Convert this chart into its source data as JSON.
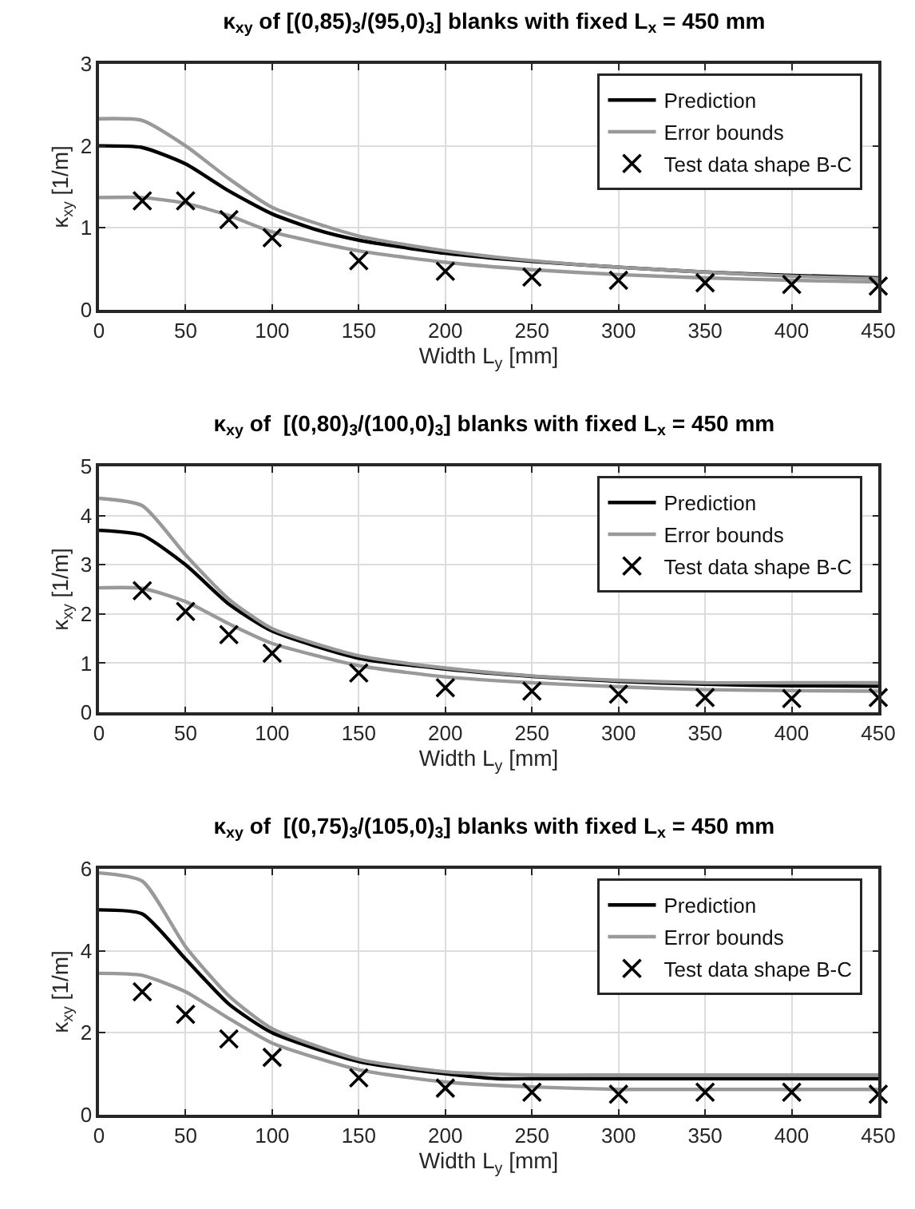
{
  "chart_data": [
    {
      "type": "line",
      "title": "κ$_{xy}$ of [(0,85)$_{3}$/(95,0)$_{3}$] blanks with fixed L$_{x}$ = 450 mm",
      "xlabel": "Width L$_{y}$ [mm]",
      "ylabel": "κ$_{xy}$ [1/m]",
      "xlim": [
        0,
        450
      ],
      "xticks": [
        0,
        50,
        100,
        150,
        200,
        250,
        300,
        350,
        400,
        450
      ],
      "ylim": [
        0,
        3
      ],
      "yticks": [
        0,
        1,
        2,
        3
      ],
      "grid": true,
      "legend": "top right",
      "series": [
        {
          "name": "Prediction",
          "color": "#000000",
          "x": [
            0,
            25,
            50,
            75,
            100,
            125,
            150,
            200,
            250,
            300,
            350,
            400,
            450
          ],
          "values": [
            2.0,
            1.98,
            1.78,
            1.45,
            1.17,
            0.98,
            0.85,
            0.69,
            0.59,
            0.52,
            0.46,
            0.42,
            0.39
          ]
        },
        {
          "name": "Error bounds",
          "color": "#999999",
          "x": [
            0,
            25,
            50,
            75,
            100,
            150,
            200,
            250,
            300,
            350,
            400,
            450
          ],
          "values": [
            2.33,
            2.31,
            2.0,
            1.6,
            1.25,
            0.9,
            0.72,
            0.6,
            0.52,
            0.46,
            0.41,
            0.38
          ]
        },
        {
          "color": "#999999",
          "x": [
            0,
            25,
            50,
            75,
            100,
            150,
            200,
            250,
            300,
            350,
            400,
            450
          ],
          "values": [
            1.37,
            1.37,
            1.3,
            1.15,
            0.95,
            0.72,
            0.58,
            0.49,
            0.43,
            0.39,
            0.36,
            0.34
          ]
        },
        {
          "name": "Test data shape B-C",
          "type": "scatter",
          "marker": "cross",
          "color": "#000000",
          "x": [
            25,
            50,
            75,
            100,
            150,
            200,
            250,
            300,
            350,
            400,
            450
          ],
          "values": [
            1.33,
            1.33,
            1.1,
            0.88,
            0.6,
            0.47,
            0.4,
            0.36,
            0.33,
            0.31,
            0.29
          ]
        }
      ]
    },
    {
      "type": "line",
      "title": "κ$_{xy}$ of  [(0,80)$_{3}$/(100,0)$_{3}$] blanks with fixed L$_{x}$ = 450 mm",
      "xlabel": "Width L$_{y}$ [mm]",
      "ylabel": "κ$_{xy}$ [1/m]",
      "xlim": [
        0,
        450
      ],
      "xticks": [
        0,
        50,
        100,
        150,
        200,
        250,
        300,
        350,
        400,
        450
      ],
      "ylim": [
        0,
        5
      ],
      "yticks": [
        0,
        1,
        2,
        3,
        4,
        5
      ],
      "grid": true,
      "legend": "top right",
      "series": [
        {
          "name": "Prediction",
          "color": "#000000",
          "x": [
            0,
            25,
            50,
            75,
            100,
            150,
            200,
            250,
            300,
            350,
            400,
            450
          ],
          "values": [
            3.7,
            3.6,
            3.0,
            2.2,
            1.65,
            1.1,
            0.88,
            0.73,
            0.63,
            0.57,
            0.54,
            0.53
          ]
        },
        {
          "name": "Error bounds",
          "color": "#999999",
          "x": [
            0,
            25,
            50,
            75,
            100,
            150,
            200,
            250,
            300,
            350,
            400,
            450
          ],
          "values": [
            4.35,
            4.2,
            3.2,
            2.3,
            1.7,
            1.15,
            0.9,
            0.74,
            0.65,
            0.6,
            0.6,
            0.6
          ]
        },
        {
          "color": "#999999",
          "x": [
            0,
            25,
            50,
            75,
            100,
            150,
            200,
            250,
            300,
            350,
            400,
            450
          ],
          "values": [
            2.53,
            2.52,
            2.25,
            1.8,
            1.4,
            0.95,
            0.72,
            0.6,
            0.52,
            0.46,
            0.44,
            0.43
          ]
        },
        {
          "name": "Test data shape B-C",
          "type": "scatter",
          "marker": "cross",
          "color": "#000000",
          "x": [
            25,
            50,
            75,
            100,
            150,
            200,
            250,
            300,
            350,
            400,
            450
          ],
          "values": [
            2.47,
            2.05,
            1.58,
            1.2,
            0.8,
            0.5,
            0.43,
            0.37,
            0.3,
            0.28,
            0.3
          ]
        }
      ]
    },
    {
      "type": "line",
      "title": "κ$_{xy}$ of  [(0,75)$_{3}$/(105,0)$_{3}$] blanks with fixed L$_{x}$ = 450 mm",
      "xlabel": "Width L$_{y}$ [mm]",
      "ylabel": "κ$_{xy}$ [1/m]",
      "xlim": [
        0,
        450
      ],
      "xticks": [
        0,
        50,
        100,
        150,
        200,
        250,
        300,
        350,
        400,
        450
      ],
      "ylim": [
        0,
        6
      ],
      "yticks": [
        0,
        2,
        4,
        6
      ],
      "grid": true,
      "legend": "top right",
      "series": [
        {
          "name": "Prediction",
          "color": "#000000",
          "x": [
            0,
            25,
            50,
            75,
            100,
            150,
            200,
            230,
            250,
            300,
            350,
            400,
            450
          ],
          "values": [
            5.0,
            4.9,
            3.8,
            2.7,
            2.0,
            1.3,
            1.0,
            0.88,
            0.88,
            0.88,
            0.88,
            0.88,
            0.88
          ]
        },
        {
          "name": "Error bounds",
          "color": "#999999",
          "x": [
            0,
            25,
            50,
            75,
            100,
            150,
            200,
            250,
            300,
            350,
            400,
            450
          ],
          "values": [
            5.9,
            5.7,
            4.1,
            2.9,
            2.1,
            1.35,
            1.05,
            0.97,
            0.97,
            0.97,
            0.97,
            0.97
          ]
        },
        {
          "color": "#999999",
          "x": [
            0,
            25,
            50,
            75,
            100,
            150,
            200,
            250,
            300,
            350,
            400,
            450
          ],
          "values": [
            3.45,
            3.4,
            3.0,
            2.35,
            1.75,
            1.1,
            0.8,
            0.68,
            0.62,
            0.62,
            0.62,
            0.62
          ]
        },
        {
          "name": "Test data shape B-C",
          "type": "scatter",
          "marker": "cross",
          "color": "#000000",
          "x": [
            25,
            50,
            75,
            100,
            150,
            200,
            250,
            300,
            350,
            400,
            450
          ],
          "values": [
            3.0,
            2.45,
            1.85,
            1.4,
            0.9,
            0.65,
            0.55,
            0.5,
            0.55,
            0.55,
            0.5
          ]
        }
      ]
    }
  ]
}
